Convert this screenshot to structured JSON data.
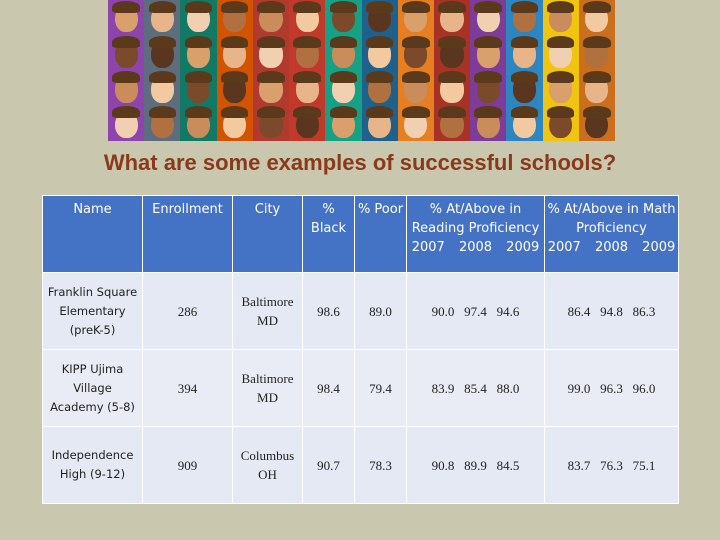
{
  "title": "What are some examples of successful schools?",
  "headers": {
    "name": "Name",
    "enrollment": "Enrollment",
    "city": "City",
    "black": "% Black",
    "poor": "% Poor",
    "reading": "% At/Above in Reading Proficiency",
    "reading_years": "2007 2008 2009",
    "math": "% At/Above in Math Proficiency",
    "math_years": "2007 2008 2009"
  },
  "rows": [
    {
      "name": "Franklin Square Elementary (preK-5)",
      "enrollment": "286",
      "city": "Baltimore MD",
      "black": "98.6",
      "poor": "89.0",
      "reading": "90.0   97.4   94.6",
      "math": "86.4   94.8   86.3"
    },
    {
      "name": "KIPP Ujima Village Academy (5-8)",
      "enrollment": "394",
      "city": "Baltimore MD",
      "black": "98.4",
      "poor": "79.4",
      "reading": "83.9   85.4   88.0",
      "math": "99.0   96.3   96.0"
    },
    {
      "name": "Independence High (9-12)",
      "enrollment": "909",
      "city": "Columbus OH",
      "black": "90.7",
      "poor": "78.3",
      "reading": "90.8   89.9   84.5",
      "math": "83.7   76.3   75.1"
    }
  ]
}
